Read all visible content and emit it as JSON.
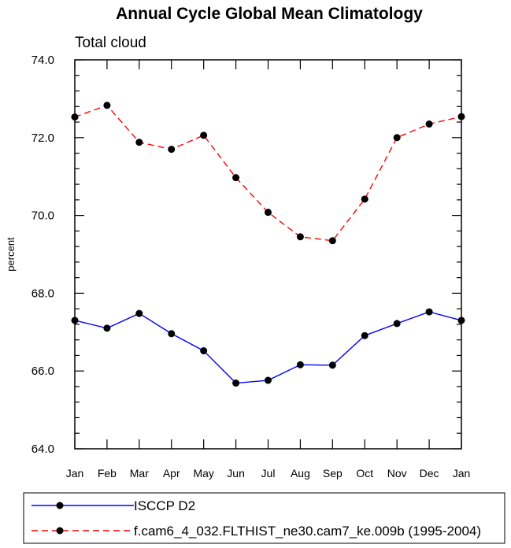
{
  "chart_data": {
    "type": "line",
    "title": "Annual Cycle Global Mean Climatology",
    "subtitle": "Total cloud",
    "xlabel": "",
    "ylabel": "percent",
    "categories": [
      "Jan",
      "Feb",
      "Mar",
      "Apr",
      "May",
      "Jun",
      "Jul",
      "Aug",
      "Sep",
      "Oct",
      "Nov",
      "Dec",
      "Jan"
    ],
    "ylim": [
      64.0,
      74.0
    ],
    "yticks": [
      "64.0",
      "66.0",
      "68.0",
      "70.0",
      "72.0",
      "74.0"
    ],
    "legend_placement": "bottom",
    "series": [
      {
        "name": "ISCCP D2",
        "color": "#0000ff",
        "style": "solid",
        "marker": "filled-circle",
        "values": [
          67.3,
          67.1,
          67.48,
          66.96,
          66.52,
          65.69,
          65.76,
          66.16,
          66.15,
          66.91,
          67.22,
          67.52,
          67.3
        ]
      },
      {
        "name": "f.cam6_4_032.FLTHIST_ne30.cam7_ke.009b (1995-2004)",
        "color": "#ff0000",
        "style": "dashed",
        "marker": "filled-circle",
        "values": [
          72.53,
          72.83,
          71.88,
          71.7,
          72.06,
          70.97,
          70.08,
          69.45,
          69.35,
          70.42,
          72.0,
          72.35,
          72.54
        ]
      }
    ]
  }
}
